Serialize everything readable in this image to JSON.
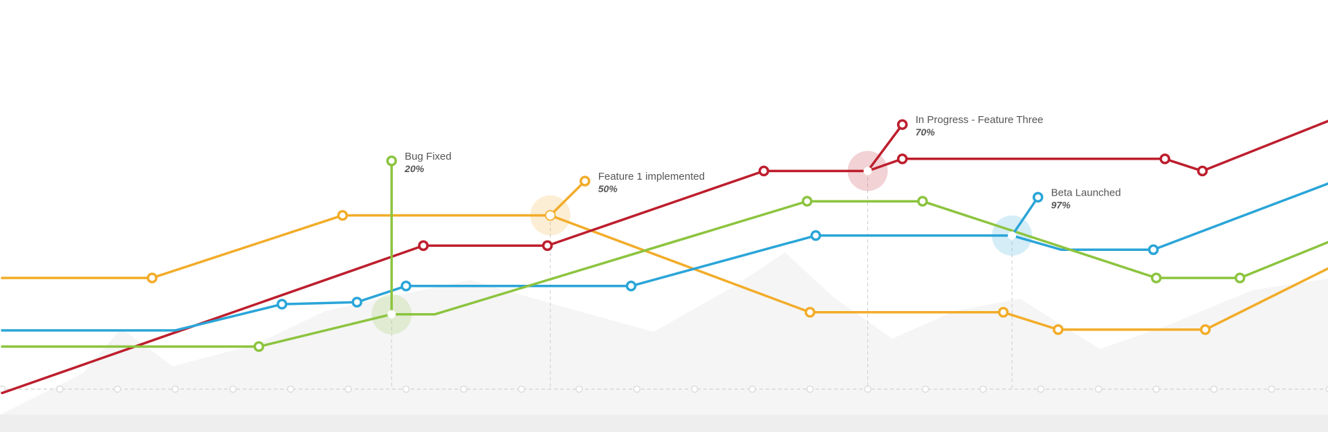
{
  "chart_data": {
    "type": "line",
    "title": "",
    "xlabel": "",
    "ylabel": "",
    "grid": "x-axis only",
    "legend": "none",
    "x": [
      0,
      1,
      2,
      3,
      4,
      5,
      6,
      7,
      8,
      9,
      10,
      11,
      12,
      13,
      14,
      15,
      16,
      17,
      18,
      19,
      20,
      21,
      22,
      23
    ],
    "xlim": [
      0,
      23
    ],
    "ylim": [
      0,
      100
    ],
    "series": [
      {
        "color": "#f2ac29",
        "points": [
          [
            0,
            32
          ],
          [
            2.6,
            32
          ],
          [
            5.9,
            47.5
          ],
          [
            9.5,
            47.5
          ],
          [
            14,
            23.5
          ],
          [
            17.35,
            23.5
          ],
          [
            18.3,
            19.2
          ],
          [
            20.85,
            19.2
          ],
          [
            23,
            34.5
          ]
        ],
        "markers": [
          2.6,
          5.9,
          9.5,
          14,
          17.35,
          18.3,
          20.85
        ]
      },
      {
        "color": "#bd1e2d",
        "points": [
          [
            0,
            3.5
          ],
          [
            7.3,
            40
          ],
          [
            9.45,
            40
          ],
          [
            13.2,
            58.5
          ],
          [
            15,
            58.5
          ],
          [
            15.6,
            61.5
          ],
          [
            20.15,
            61.5
          ],
          [
            20.8,
            58.5
          ],
          [
            23,
            71
          ]
        ],
        "markers": [
          7.3,
          9.45,
          13.2,
          15.6,
          20.15,
          20.8
        ]
      },
      {
        "color": "#2aa5d8",
        "points": [
          [
            0,
            19
          ],
          [
            3,
            19
          ],
          [
            4.85,
            25.5
          ],
          [
            6.15,
            26
          ],
          [
            7,
            30
          ],
          [
            10.9,
            30
          ],
          [
            14.1,
            42.5
          ],
          [
            17.5,
            42.5
          ],
          [
            18.35,
            39
          ],
          [
            19.95,
            39
          ],
          [
            23,
            55.5
          ]
        ],
        "markers": [
          4.85,
          6.15,
          7,
          10.9,
          14.1,
          19.95
        ]
      },
      {
        "color": "#8cc43f",
        "points": [
          [
            0,
            15
          ],
          [
            4.45,
            15
          ],
          [
            6.75,
            23
          ],
          [
            7.5,
            23
          ],
          [
            13.95,
            51
          ],
          [
            15.95,
            51
          ],
          [
            20,
            32
          ],
          [
            21.45,
            32
          ],
          [
            23,
            41
          ]
        ],
        "markers": [
          4.45,
          13.95,
          15.95,
          20,
          21.45
        ]
      }
    ],
    "annotations": [
      {
        "title": "Bug Fixed",
        "value": "20%",
        "color": "#8cc43f",
        "x": 6.75,
        "y": 23,
        "tip_x": 6.75,
        "tip_y": 61
      },
      {
        "title": "Feature 1 implemented",
        "value": "50%",
        "color": "#f2ac29",
        "x": 9.5,
        "y": 47.5,
        "tip_x": 10.1,
        "tip_y": 56
      },
      {
        "title": "In Progress - Feature Three",
        "value": "70%",
        "color": "#bd1e2d",
        "x": 15,
        "y": 58.5,
        "tip_x": 15.6,
        "tip_y": 70
      },
      {
        "title": "Beta Launched",
        "value": "97%",
        "color": "#2aa5d8",
        "x": 17.5,
        "y": 42.5,
        "tip_x": 17.95,
        "tip_y": 52
      }
    ]
  }
}
